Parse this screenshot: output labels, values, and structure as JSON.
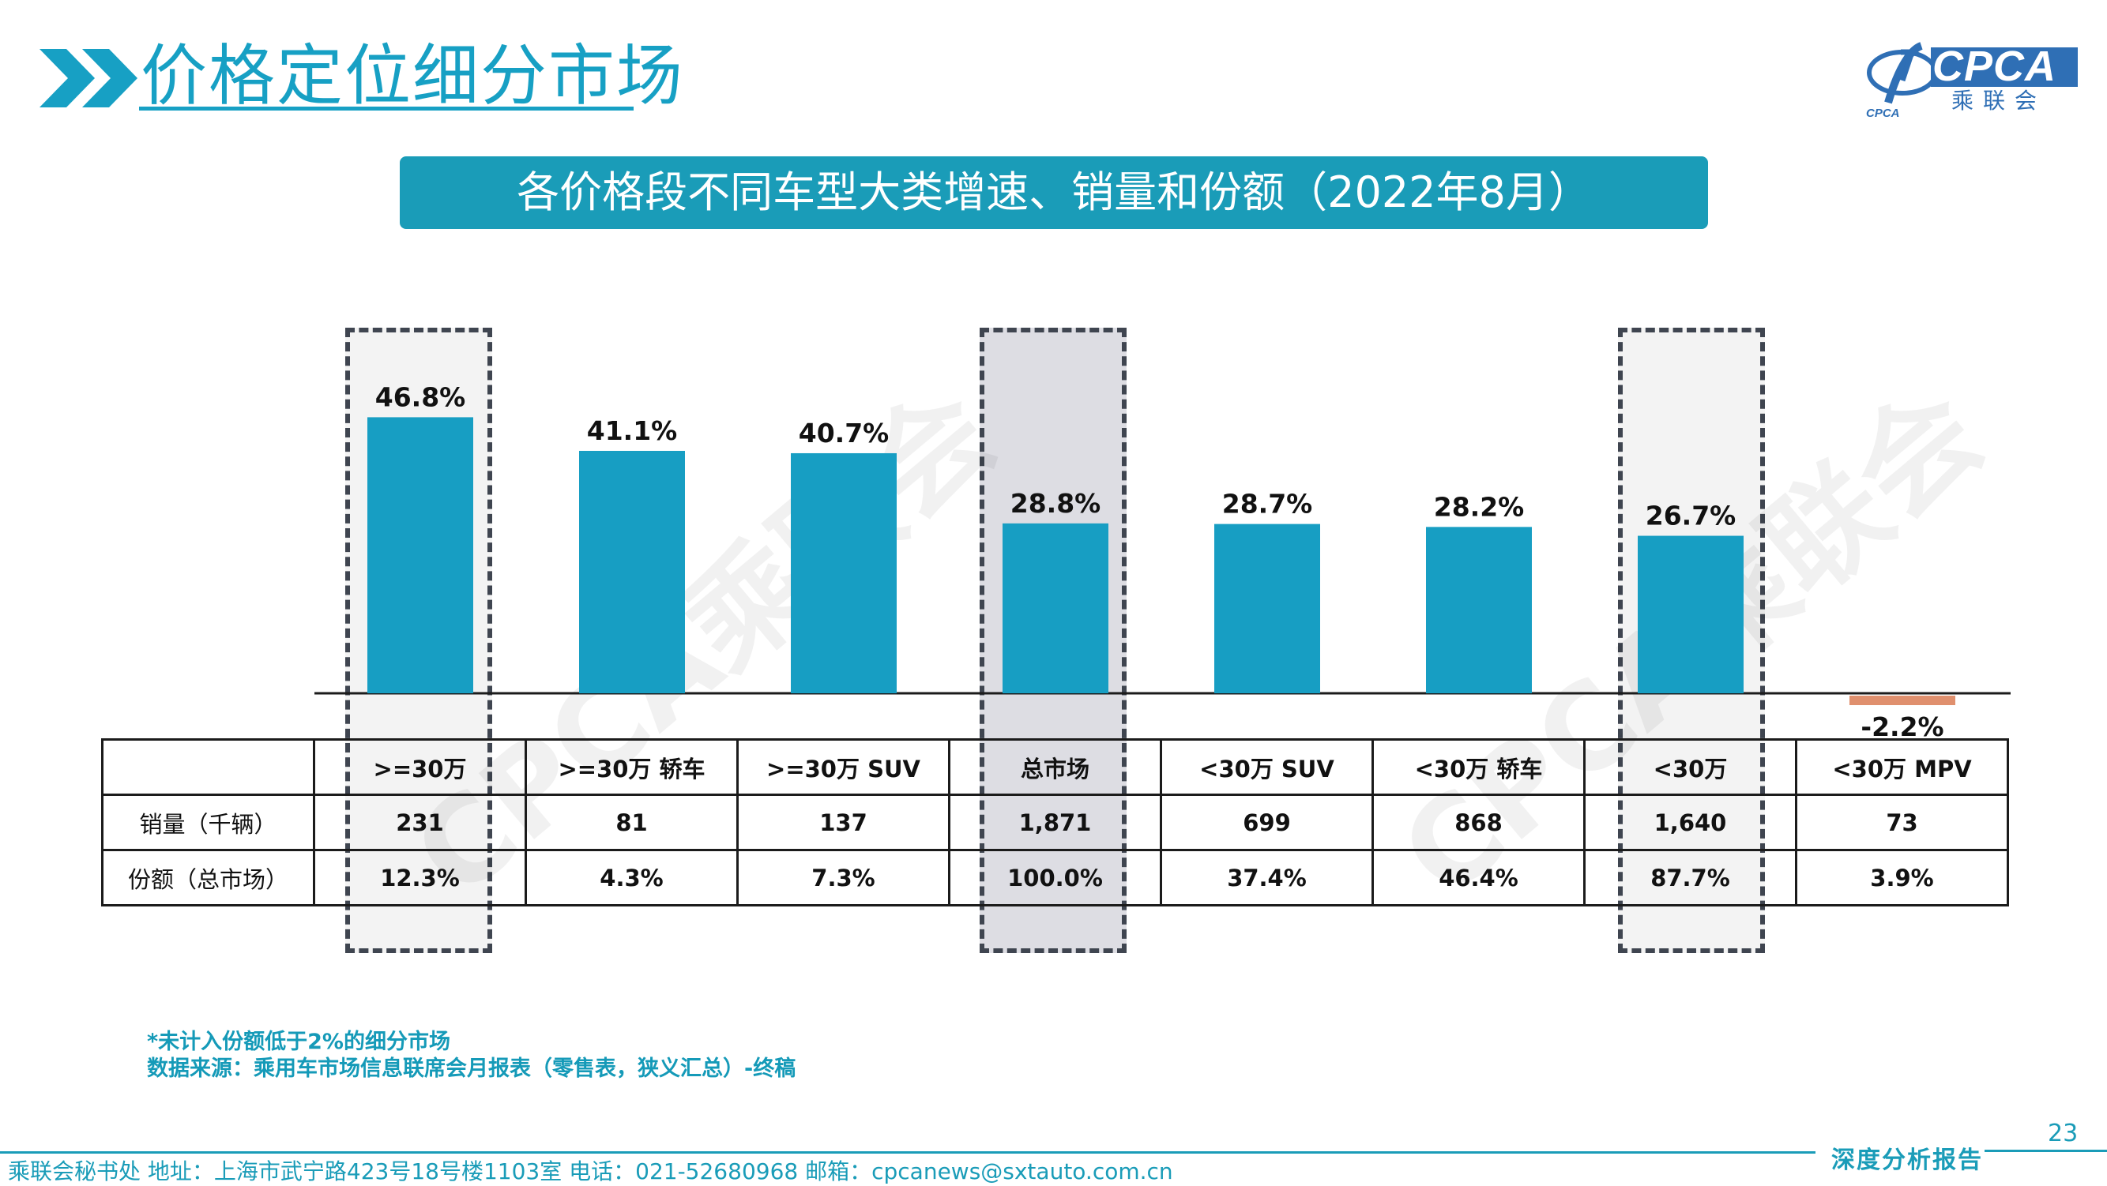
{
  "header": {
    "title": "价格定位细分市场",
    "logo_text_en": "CPCA",
    "logo_text_cn": "乘联会",
    "logo_small": "CPCA"
  },
  "banner": {
    "title": "各价格段不同车型大类增速、销量和份额（2022年8月）"
  },
  "watermark": "CPCA乘联会",
  "chart_data": {
    "type": "bar",
    "categories": [
      ">=30万",
      ">=30万 轿车",
      ">=30万 SUV",
      "总市场",
      "<30万 SUV",
      "<30万 轿车",
      "<30万",
      "<30万 MPV"
    ],
    "values": [
      46.8,
      41.1,
      40.7,
      28.8,
      28.7,
      28.2,
      26.7,
      -2.2
    ],
    "value_labels": [
      "46.8%",
      "41.1%",
      "40.7%",
      "28.8%",
      "28.7%",
      "28.2%",
      "26.7%",
      "-2.2%"
    ],
    "colors": {
      "positive": "#179ec3",
      "negative": "#e0906e"
    },
    "highlighted": [
      ">=30万",
      "总市场",
      "<30万"
    ],
    "title": "",
    "xlabel": "",
    "ylabel": ""
  },
  "table": {
    "rows": [
      {
        "label": "销量（千辆）",
        "cells": [
          "231",
          "81",
          "137",
          "1,871",
          "699",
          "868",
          "1,640",
          "73"
        ]
      },
      {
        "label": "份额（总市场）",
        "cells": [
          "12.3%",
          "4.3%",
          "7.3%",
          "100.0%",
          "37.4%",
          "46.4%",
          "87.7%",
          "3.9%"
        ]
      }
    ]
  },
  "notes": {
    "line1": "*未计入份额低于2%的细分市场",
    "line2": "数据来源：乘用车市场信息联席会月报表（零售表，狭义汇总）-终稿"
  },
  "footer": {
    "page_number": "23",
    "report_tag": "深度分析报告",
    "contact": "乘联会秘书处   地址：上海市武宁路423号18号楼1103室   电话：021-52680968   邮箱：cpcanews@sxtauto.com.cn"
  }
}
